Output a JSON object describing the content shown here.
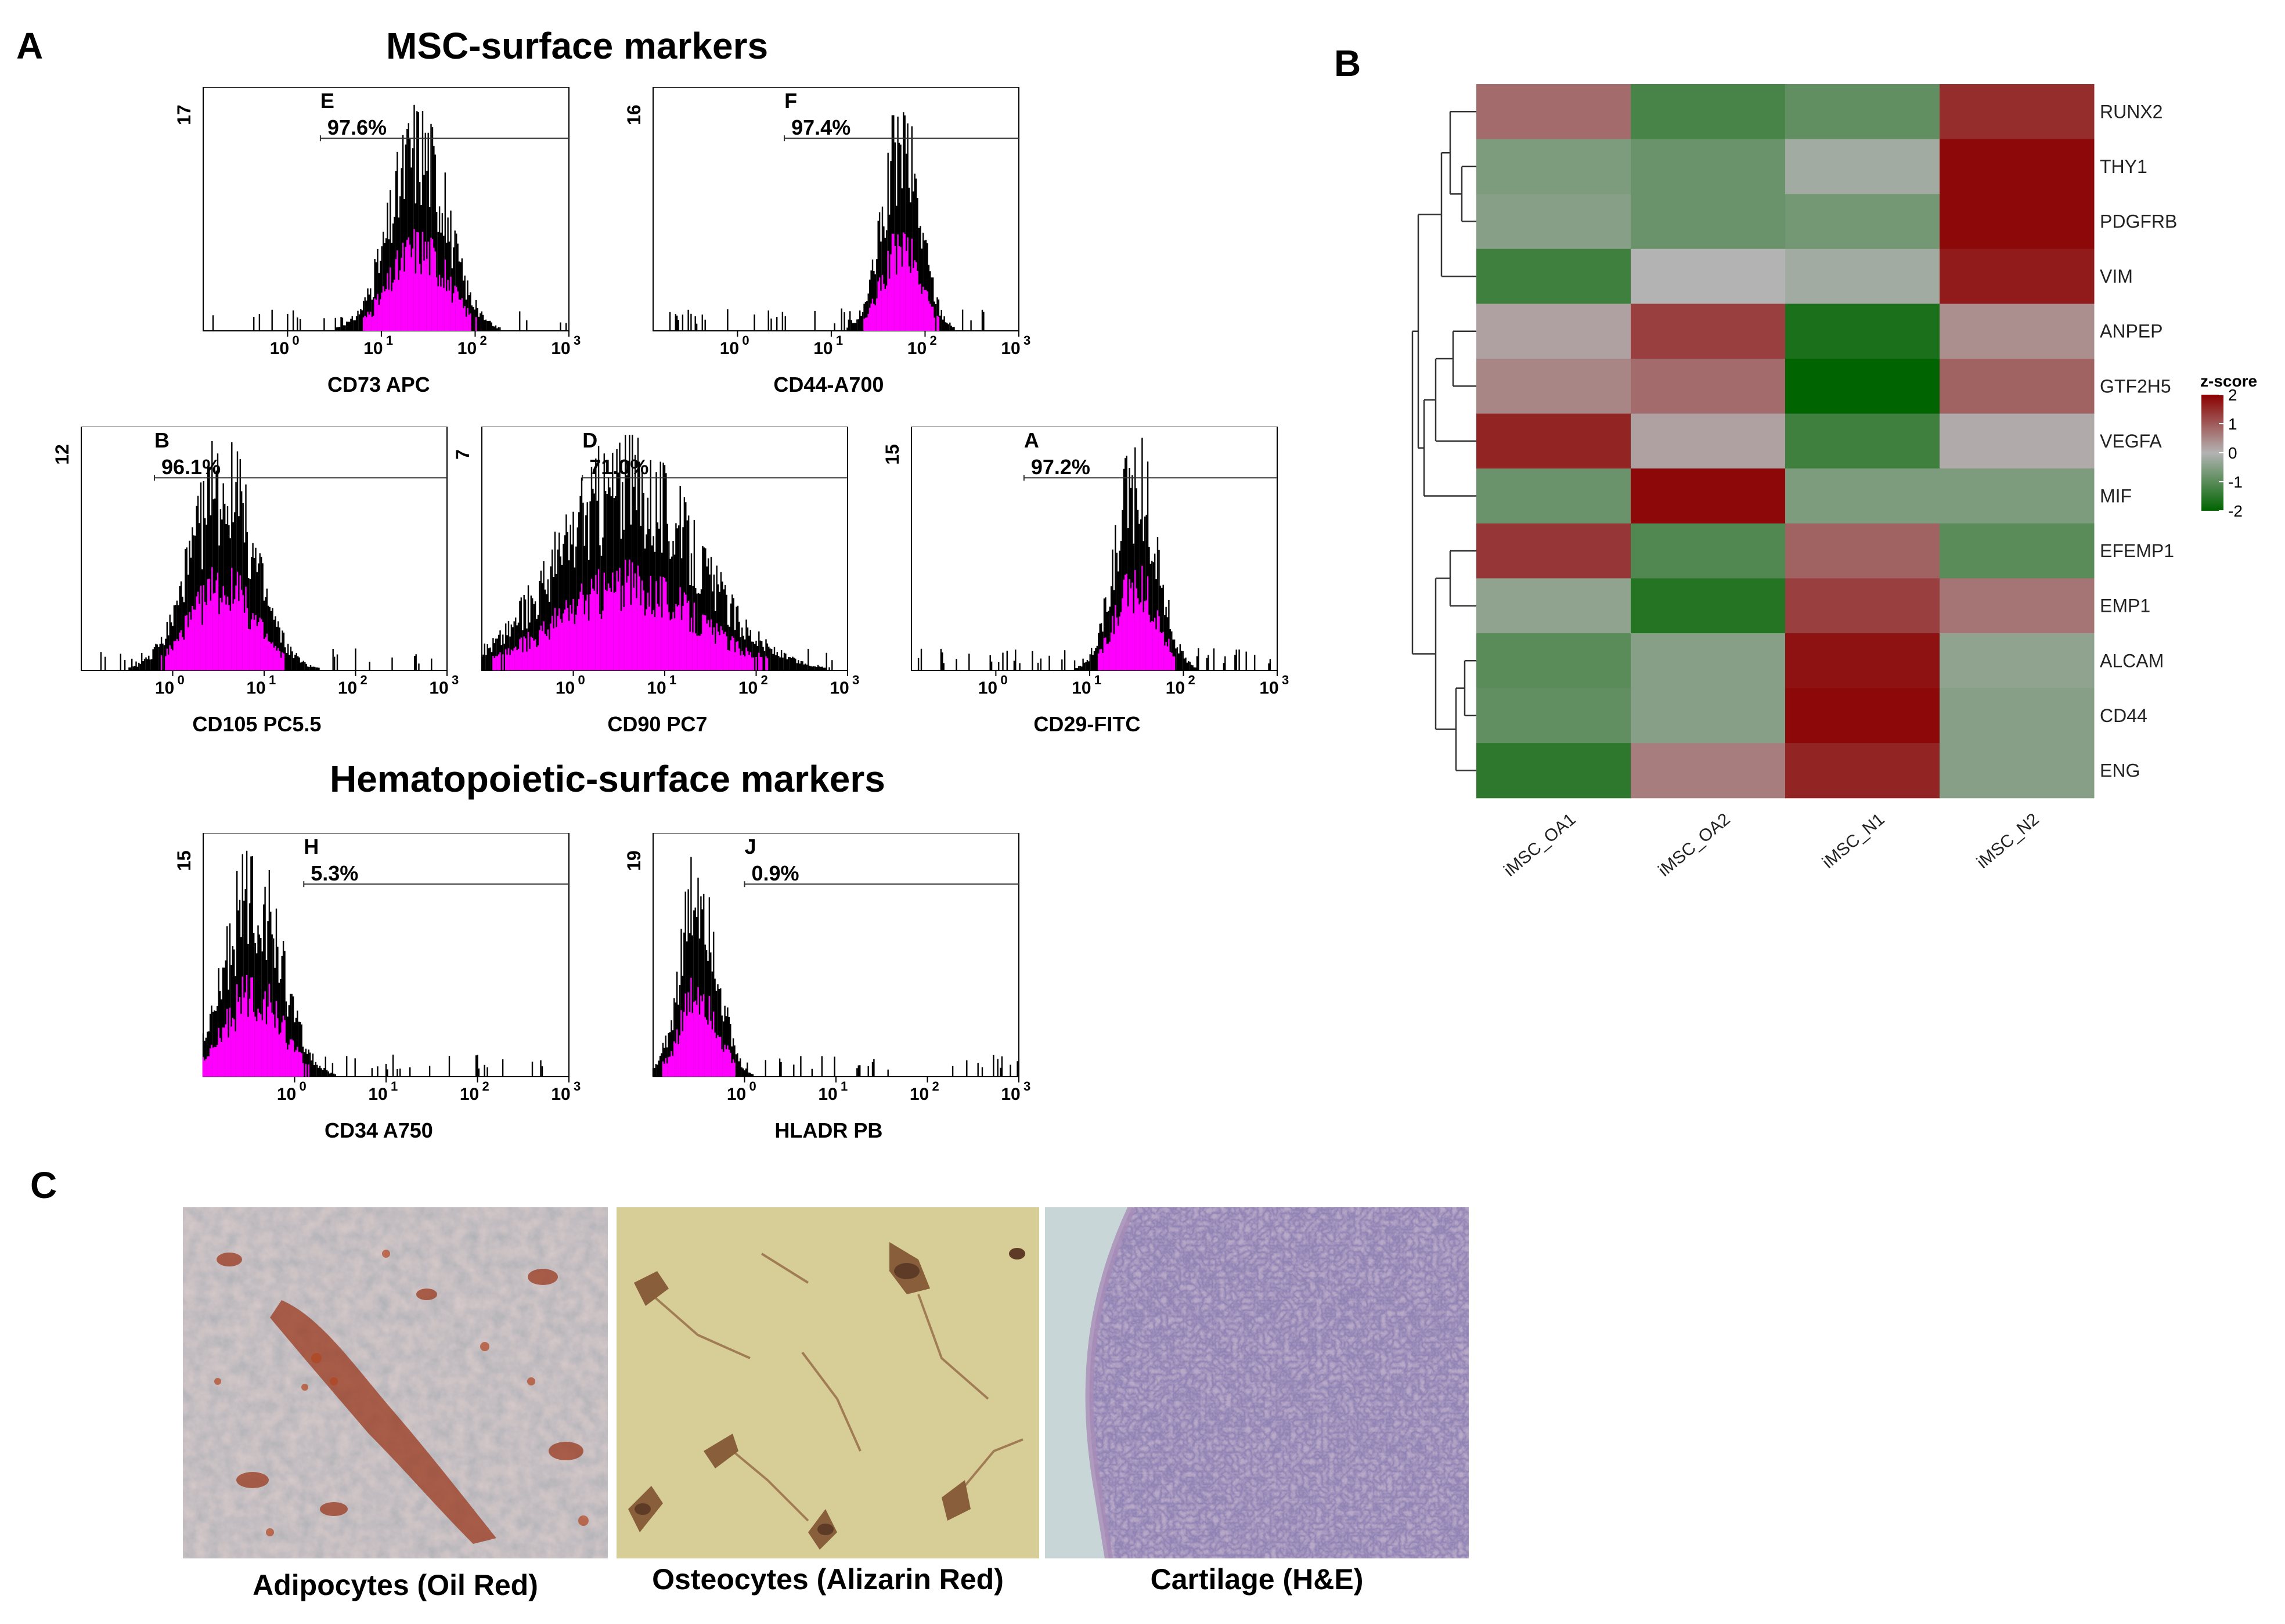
{
  "panel_labels": {
    "a": "A",
    "b": "B",
    "c": "C"
  },
  "titles": {
    "msc": "MSC-surface markers",
    "hemato": "Hematopoietic-surface markers"
  },
  "chart_data": [
    {
      "type": "histogram",
      "id": "cd73",
      "xlabel": "CD73 APC",
      "ymax_label": "17",
      "gate_letter": "E",
      "gate_percent": "97.6%",
      "xticks": [
        "10",
        "10",
        "10",
        "10"
      ],
      "xtick_exp": [
        "0",
        "1",
        "2",
        "3"
      ],
      "x_range_log": [
        -0.9,
        3
      ],
      "peak_log": 1.4,
      "spread_log": 0.3,
      "gate_start_log": 0.35
    },
    {
      "type": "histogram",
      "id": "cd44",
      "xlabel": "CD44-A700",
      "ymax_label": "16",
      "gate_letter": "F",
      "gate_percent": "97.4%",
      "xticks": [
        "10",
        "10",
        "10",
        "10"
      ],
      "xtick_exp": [
        "0",
        "1",
        "2",
        "3"
      ],
      "x_range_log": [
        -0.9,
        3
      ],
      "peak_log": 1.75,
      "spread_log": 0.2,
      "gate_start_log": 0.5
    },
    {
      "type": "histogram",
      "id": "cd105",
      "xlabel": "CD105 PC5.5",
      "ymax_label": "12",
      "gate_letter": "B",
      "gate_percent": "96.1%",
      "xticks": [
        "10",
        "10",
        "10",
        "10"
      ],
      "xtick_exp": [
        "0",
        "1",
        "2",
        "3"
      ],
      "x_range_log": [
        -1,
        3
      ],
      "peak_log": 0.55,
      "spread_log": 0.35,
      "gate_start_log": -0.2
    },
    {
      "type": "histogram",
      "id": "cd90",
      "xlabel": "CD90 PC7",
      "ymax_label": "7",
      "gate_letter": "D",
      "gate_percent": "71.0%",
      "xticks": [
        "10",
        "10",
        "10",
        "10"
      ],
      "xtick_exp": [
        "0",
        "1",
        "2",
        "3"
      ],
      "x_range_log": [
        -1,
        3
      ],
      "peak_log": 0.6,
      "spread_log": 0.75,
      "gate_start_log": 0.1
    },
    {
      "type": "histogram",
      "id": "cd29",
      "xlabel": "CD29-FITC",
      "ymax_label": "15",
      "gate_letter": "A",
      "gate_percent": "97.2%",
      "xticks": [
        "10",
        "10",
        "10",
        "10"
      ],
      "xtick_exp": [
        "0",
        "1",
        "2",
        "3"
      ],
      "x_range_log": [
        -0.9,
        3
      ],
      "peak_log": 1.5,
      "spread_log": 0.22,
      "gate_start_log": 0.3
    },
    {
      "type": "histogram",
      "id": "cd34",
      "xlabel": "CD34 A750",
      "ymax_label": "15",
      "gate_letter": "H",
      "gate_percent": "5.3%",
      "xticks": [
        "10",
        "10",
        "10",
        "10"
      ],
      "xtick_exp": [
        "0",
        "1",
        "2",
        "3"
      ],
      "x_range_log": [
        -1,
        3
      ],
      "peak_log": -0.45,
      "spread_log": 0.3,
      "gate_start_log": 0.1
    },
    {
      "type": "histogram",
      "id": "hladr",
      "xlabel": "HLADR PB",
      "ymax_label": "19",
      "gate_letter": "J",
      "gate_percent": "0.9%",
      "xticks": [
        "10",
        "10",
        "10",
        "10"
      ],
      "xtick_exp": [
        "0",
        "1",
        "2",
        "3"
      ],
      "x_range_log": [
        -1,
        3
      ],
      "peak_log": -0.5,
      "spread_log": 0.2,
      "gate_start_log": 0.0
    },
    {
      "type": "heatmap",
      "id": "zscore-heatmap",
      "columns": [
        "iMSC_OA1",
        "iMSC_OA2",
        "iMSC_N1",
        "iMSC_N2"
      ],
      "rows": [
        "RUNX2",
        "THY1",
        "PDGFRB",
        "VIM",
        "ANPEP",
        "GTF2H5",
        "VEGFA",
        "MIF",
        "EFEMP1",
        "EMP1",
        "ALCAM",
        "CD44",
        "ENG"
      ],
      "values": [
        [
          0.8,
          -1.2,
          -0.9,
          1.5
        ],
        [
          -0.6,
          -0.8,
          -0.2,
          1.9
        ],
        [
          -0.5,
          -0.8,
          -0.7,
          1.9
        ],
        [
          -1.3,
          0.0,
          -0.2,
          1.7
        ],
        [
          0.2,
          1.3,
          -1.7,
          0.4
        ],
        [
          0.5,
          0.8,
          -2.0,
          0.9
        ],
        [
          1.6,
          0.2,
          -1.3,
          0.1
        ],
        [
          -0.8,
          1.9,
          -0.6,
          -0.6
        ],
        [
          1.4,
          -1.1,
          0.9,
          -1.0
        ],
        [
          -0.4,
          -1.6,
          1.3,
          0.7
        ],
        [
          -1.0,
          -0.5,
          1.8,
          -0.4
        ],
        [
          -0.9,
          -0.5,
          1.9,
          -0.5
        ],
        [
          -1.5,
          0.6,
          1.6,
          -0.5
        ]
      ],
      "legend": {
        "title": "z-score",
        "ticks": [
          "2",
          "1",
          "0",
          "-1",
          "-2"
        ]
      },
      "colors": {
        "high": "#8b0000",
        "mid": "#b3b3b3",
        "low": "#006400"
      }
    }
  ],
  "images": [
    {
      "id": "adipocytes",
      "caption": "Adipocytes (Oil Red)"
    },
    {
      "id": "osteocytes",
      "caption": "Osteocytes (Alizarin Red)"
    },
    {
      "id": "cartilage",
      "caption": "Cartilage (H&E)"
    }
  ],
  "colors": {
    "histogram_fill": "#ff00ff",
    "histogram_line": "#000000"
  }
}
